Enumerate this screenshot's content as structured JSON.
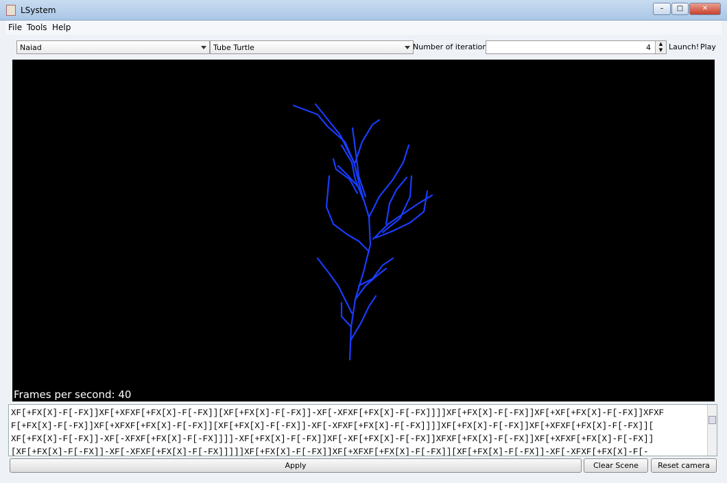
{
  "window": {
    "title": "LSystem"
  },
  "menu": [
    "File",
    "Tools",
    "Help"
  ],
  "toolbar": {
    "preset": "Naiad",
    "turtle": "Tube Turtle",
    "iterations_label": "Number of iterations:",
    "iterations": "4",
    "launch": "Launch!",
    "play": "Play"
  },
  "viewport": {
    "fps": "Frames per second: 40"
  },
  "output": {
    "lines": [
      "XF[+FX[X]-F[-FX]]XF[+XFXF[+FX[X]-F[-FX]][XF[+FX[X]-F[-FX]]-XF[-XFXF[+FX[X]-F[-FX]]]]XF[+FX[X]-F[-FX]]XF[+XF[+FX[X]-F[-FX]]XFXF",
      "F[+FX[X]-F[-FX]]XF[+XFXF[+FX[X]-F[-FX]][XF[+FX[X]-F[-FX]]-XF[-XFXF[+FX[X]-F[-FX]]]]XF[+FX[X]-F[-FX]]XF[+XFXF[+FX[X]-F[-FX]][",
      "XF[+FX[X]-F[-FX]]-XF[-XFXF[+FX[X]-F[-FX]]]]-XF[+FX[X]-F[-FX]]XF[-XF[+FX[X]-F[-FX]]XFXF[+FX[X]-F[-FX]]XF[+XFXF[+FX[X]-F[-FX]]",
      "[XF[+FX[X]-F[-FX]]-XF[-XFXF[+FX[X]-F[-FX]]]]]XF[+FX[X]-F[-FX]]XF[+XFXF[+FX[X]-F[-FX]][XF[+FX[X]-F[-FX]]-XF[-XFXF[+FX[X]-F[-"
    ]
  },
  "buttons": {
    "apply": "Apply",
    "clear": "Clear Scene",
    "reset": "Reset camera"
  }
}
